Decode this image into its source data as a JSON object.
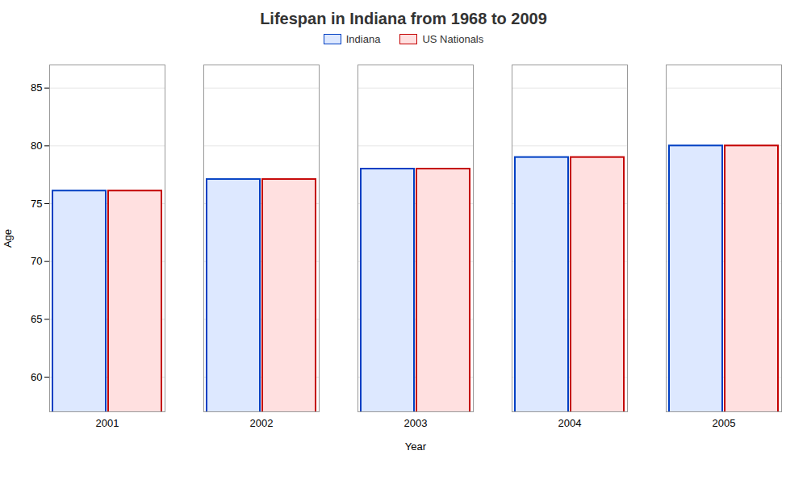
{
  "chart_data": {
    "type": "bar",
    "title": "Lifespan in Indiana from 1968 to 2009",
    "x_label": "Year",
    "y_label": "Age",
    "categories": [
      "2001",
      "2002",
      "2003",
      "2004",
      "2005"
    ],
    "series": [
      {
        "name": "Indiana",
        "color": "#dde8ff",
        "values": [
          76.1,
          77.1,
          78.0,
          79.0,
          80.0
        ]
      },
      {
        "name": "US Nationals",
        "color": "#ffe0e0",
        "values": [
          76.1,
          77.1,
          78.0,
          79.0,
          80.0
        ]
      }
    ],
    "ylim": [
      57,
      87
    ],
    "yticks": [
      60,
      65,
      70,
      75,
      80,
      85
    ],
    "grid": true,
    "legend": "top"
  }
}
